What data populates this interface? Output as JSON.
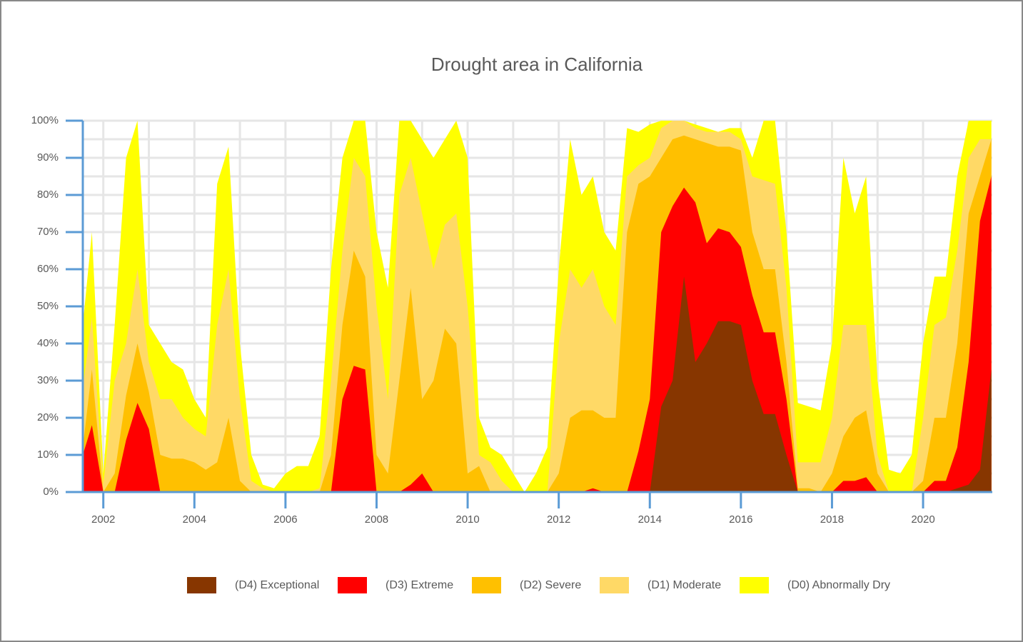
{
  "chart_data": {
    "type": "area",
    "title": "Drought area in California",
    "x": [
      2001.55,
      2001.75,
      2002,
      2002.25,
      2002.5,
      2002.75,
      2003,
      2003.25,
      2003.5,
      2003.75,
      2004,
      2004.25,
      2004.5,
      2004.75,
      2005,
      2005.25,
      2005.5,
      2005.75,
      2006,
      2006.25,
      2006.5,
      2006.75,
      2007,
      2007.25,
      2007.5,
      2007.75,
      2008,
      2008.25,
      2008.5,
      2008.75,
      2009,
      2009.25,
      2009.5,
      2009.75,
      2010,
      2010.25,
      2010.5,
      2010.75,
      2011,
      2011.25,
      2011.5,
      2011.75,
      2012,
      2012.25,
      2012.5,
      2012.75,
      2013,
      2013.25,
      2013.5,
      2013.75,
      2014,
      2014.25,
      2014.5,
      2014.75,
      2015,
      2015.25,
      2015.5,
      2015.75,
      2016,
      2016.25,
      2016.5,
      2016.75,
      2017,
      2017.25,
      2017.5,
      2017.75,
      2018,
      2018.25,
      2018.5,
      2018.75,
      2019,
      2019.25,
      2019.5,
      2019.75,
      2020,
      2020.25,
      2020.5,
      2020.75,
      2021,
      2021.25,
      2021.5
    ],
    "series": [
      {
        "name": "(D4) Exceptional",
        "color": "#873600",
        "values": [
          0,
          0,
          0,
          0,
          0,
          0,
          0,
          0,
          0,
          0,
          0,
          0,
          0,
          0,
          0,
          0,
          0,
          0,
          0,
          0,
          0,
          0,
          0,
          0,
          0,
          0,
          0,
          0,
          0,
          0,
          0,
          0,
          0,
          0,
          0,
          0,
          0,
          0,
          0,
          0,
          0,
          0,
          0,
          0,
          0,
          0,
          0,
          0,
          0,
          0,
          0,
          23,
          30,
          58,
          35,
          40,
          46,
          46,
          45,
          30,
          21,
          21,
          10,
          0,
          0,
          0,
          0,
          0,
          0,
          0,
          0,
          0,
          0,
          0,
          0,
          0,
          0,
          1,
          2,
          6,
          33
        ]
      },
      {
        "name": "(D3) Extreme",
        "color": "#ff0000",
        "values": [
          10,
          18,
          0,
          0,
          14,
          24,
          17,
          0,
          0,
          0,
          0,
          0,
          0,
          0,
          0,
          0,
          0,
          0,
          0,
          0,
          0,
          0,
          0,
          25,
          34,
          33,
          0,
          0,
          0,
          2,
          5,
          0,
          0,
          0,
          0,
          0,
          0,
          0,
          0,
          0,
          0,
          0,
          0,
          0,
          0,
          1,
          0,
          0,
          0,
          11,
          25,
          70,
          77,
          82,
          78,
          67,
          71,
          70,
          66,
          53,
          43,
          43,
          25,
          0,
          0,
          0,
          0,
          3,
          3,
          4,
          0,
          0,
          0,
          0,
          0,
          3,
          3,
          12,
          35,
          73,
          85
        ]
      },
      {
        "name": "(D2) Severe",
        "color": "#ffc000",
        "values": [
          12,
          33,
          0,
          5,
          26,
          40,
          27,
          10,
          9,
          9,
          8,
          6,
          8,
          20,
          3,
          0,
          0,
          0,
          0,
          0,
          0,
          0,
          10,
          45,
          65,
          58,
          10,
          5,
          30,
          55,
          25,
          30,
          44,
          40,
          5,
          7,
          0,
          0,
          0,
          0,
          0,
          0,
          5,
          20,
          22,
          22,
          20,
          20,
          70,
          83,
          85,
          90,
          95,
          96,
          95,
          94,
          93,
          93,
          92,
          70,
          60,
          60,
          35,
          1,
          1,
          0,
          5,
          15,
          20,
          22,
          5,
          0,
          0,
          0,
          3,
          20,
          20,
          40,
          75,
          85,
          95
        ]
      },
      {
        "name": "(D1) Moderate",
        "color": "#ffd966",
        "values": [
          28,
          47,
          2,
          30,
          40,
          60,
          35,
          25,
          25,
          20,
          17,
          15,
          45,
          60,
          25,
          3,
          1,
          0,
          0,
          0,
          0,
          1,
          30,
          65,
          90,
          85,
          50,
          25,
          80,
          90,
          75,
          60,
          72,
          75,
          50,
          10,
          8,
          3,
          0,
          0,
          0,
          0,
          40,
          60,
          55,
          60,
          50,
          45,
          85,
          88,
          90,
          98,
          100,
          100,
          98,
          97,
          97,
          97,
          95,
          85,
          84,
          83,
          55,
          8,
          8,
          8,
          20,
          45,
          45,
          45,
          10,
          0,
          0,
          0,
          20,
          45,
          47,
          65,
          90,
          95,
          95
        ]
      },
      {
        "name": "(D0) Abnormally Dry",
        "color": "#ffff00",
        "values": [
          45,
          70,
          5,
          45,
          90,
          100,
          45,
          40,
          35,
          33,
          25,
          20,
          83,
          93,
          40,
          10,
          2,
          1,
          5,
          7,
          7,
          15,
          60,
          90,
          100,
          100,
          70,
          55,
          100,
          100,
          95,
          90,
          95,
          100,
          90,
          20,
          12,
          10,
          5,
          0,
          5,
          12,
          60,
          95,
          80,
          85,
          70,
          65,
          98,
          97,
          99,
          100,
          100,
          100,
          99,
          98,
          97,
          98,
          98,
          90,
          100,
          100,
          70,
          24,
          23,
          22,
          40,
          90,
          75,
          85,
          30,
          6,
          5,
          10,
          40,
          58,
          58,
          85,
          100,
          100,
          100
        ]
      }
    ],
    "xlim": [
      2001.55,
      2021.52
    ],
    "xticks": [
      2002,
      2004,
      2006,
      2008,
      2010,
      2012,
      2014,
      2016,
      2018,
      2020
    ],
    "ylim": [
      0,
      100
    ],
    "yticks": [
      {
        "value": 0,
        "label": "0%"
      },
      {
        "value": 10,
        "label": "10%"
      },
      {
        "value": 20,
        "label": "20%"
      },
      {
        "value": 30,
        "label": "30%"
      },
      {
        "value": 40,
        "label": "40%"
      },
      {
        "value": 50,
        "label": "50%"
      },
      {
        "value": 60,
        "label": "60%"
      },
      {
        "value": 70,
        "label": "70%"
      },
      {
        "value": 80,
        "label": "80%"
      },
      {
        "value": 90,
        "label": "90%"
      },
      {
        "value": 100,
        "label": "100%"
      }
    ],
    "grid_x": [
      2002,
      2003,
      2004,
      2005,
      2006,
      2007,
      2008,
      2009,
      2010,
      2011,
      2012,
      2013,
      2014,
      2015,
      2016,
      2017,
      2018,
      2019,
      2020,
      2021
    ],
    "grid_y": [
      0,
      5,
      10,
      15,
      20,
      25,
      30,
      35,
      40,
      45,
      50,
      55,
      60,
      65,
      70,
      75,
      80,
      85,
      90,
      95,
      100
    ],
    "grid": true,
    "legend": "bottom"
  }
}
